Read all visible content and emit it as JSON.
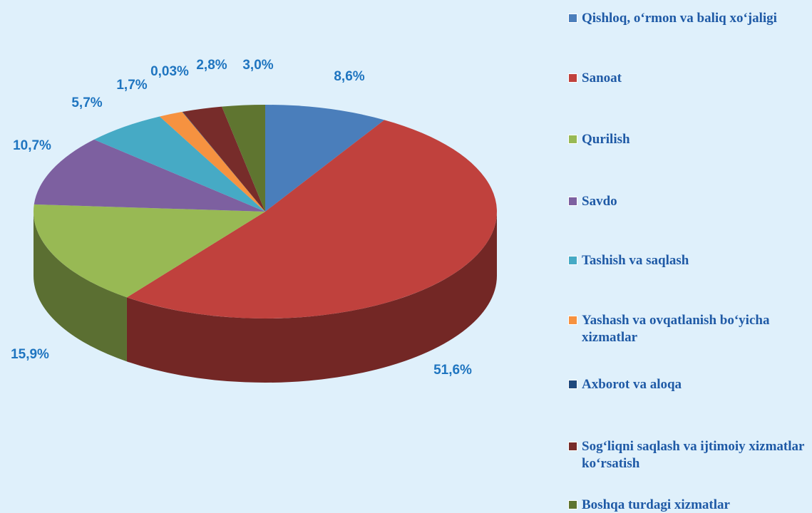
{
  "chart_data": {
    "type": "pie",
    "categories": [
      "Qishloq, o‘rmon va baliq xo‘jaligi",
      "Sanoat",
      "Qurilish",
      "Savdo",
      "Tashish va saqlash",
      "Yashash va ovqatlanish bo‘yicha xizmatlar",
      "Axborot va aloqa",
      "Sog‘liqni saqlash va ijtimoiy xizmatlar ko‘rsatish",
      "Boshqa turdagi xizmatlar"
    ],
    "values": [
      8.6,
      51.6,
      15.9,
      10.7,
      5.7,
      1.7,
      0.03,
      2.8,
      3.0
    ],
    "value_labels": [
      "8,6%",
      "51,6%",
      "15,9%",
      "10,7%",
      "5,7%",
      "1,7%",
      "0,03%",
      "2,8%",
      "3,0%"
    ],
    "colors": [
      "#4a7ebb",
      "#c0413d",
      "#98b954",
      "#7d60a0",
      "#46aac5",
      "#f69240",
      "#1f497d",
      "#772c2a",
      "#5f7530"
    ],
    "legend": "right"
  }
}
